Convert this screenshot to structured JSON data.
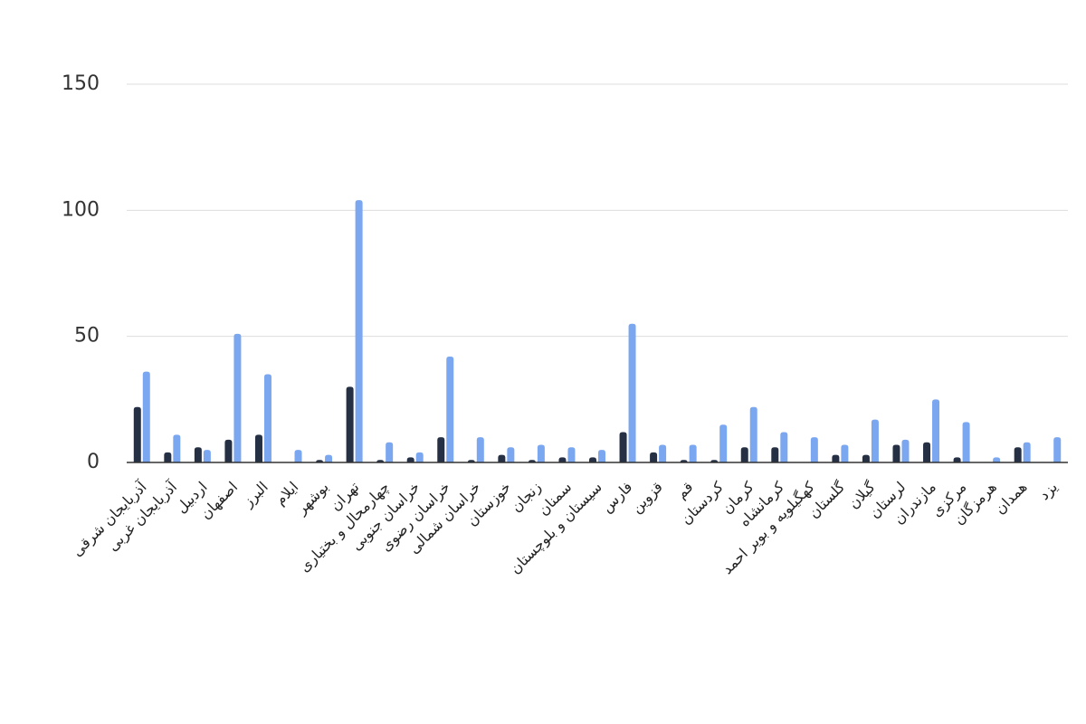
{
  "chart_data": {
    "type": "bar",
    "categories": [
      "آذربایجان شرقی",
      "آذربایجان غربی",
      "اردبیل",
      "اصفهان",
      "البرز",
      "ایلام",
      "بوشهر",
      "تهران",
      "چهارمحال و بختیاری",
      "خراسان جنوبی",
      "خراسان رضوی",
      "خراسان شمالی",
      "خوزستان",
      "زنجان",
      "سمنان",
      "سیستان و بلوچستان",
      "فارس",
      "قزوین",
      "قم",
      "کردستان",
      "کرمان",
      "کرمانشاه",
      "کهگیلویه و بویر احمد",
      "گلستان",
      "گیلان",
      "لرستان",
      "مازندران",
      "مرکزی",
      "هرمزگان",
      "همدان",
      "یزد"
    ],
    "series": [
      {
        "color": "#253044",
        "values": [
          22,
          4,
          6,
          9,
          11,
          0,
          1,
          30,
          1,
          2,
          10,
          1,
          3,
          1,
          2,
          2,
          12,
          4,
          1,
          1,
          6,
          6,
          0,
          3,
          3,
          7,
          8,
          2,
          0,
          6,
          0
        ]
      },
      {
        "color": "#7ba7f0",
        "values": [
          36,
          11,
          5,
          51,
          35,
          5,
          3,
          104,
          8,
          4,
          42,
          10,
          6,
          7,
          6,
          5,
          55,
          7,
          7,
          15,
          22,
          12,
          10,
          7,
          17,
          9,
          25,
          16,
          2,
          8,
          10
        ]
      }
    ],
    "ylim": [
      0,
      150
    ],
    "yticks": [
      0,
      50,
      100,
      150
    ],
    "grid": true
  }
}
